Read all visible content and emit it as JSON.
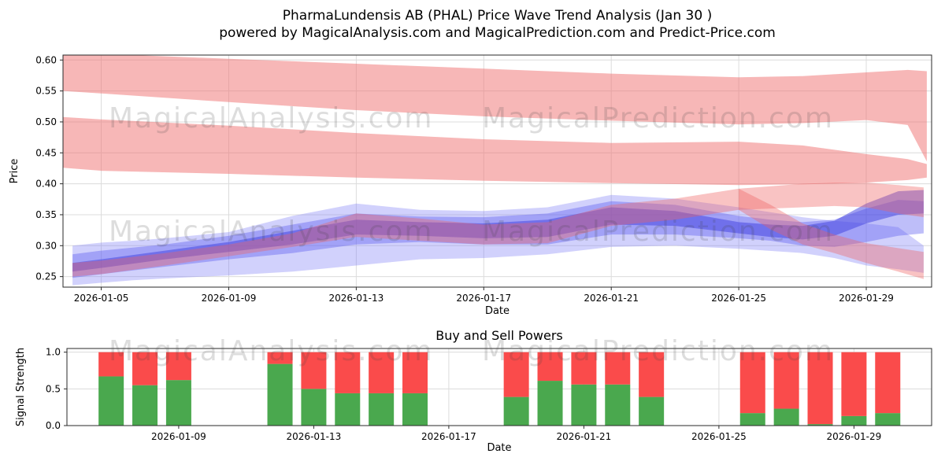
{
  "watermark": {
    "left_text": "MagicalAnalysis.com",
    "right_text": "MagicalPrediction.com"
  },
  "chart_data": [
    {
      "type": "area",
      "name": "price-wave-trend",
      "title": "PharmaLundensis AB (PHAL) Price Wave Trend Analysis (Jan 30 )",
      "subtitle": "powered by MagicalAnalysis.com and MagicalPrediction.com and Predict-Price.com",
      "xlabel": "Date",
      "ylabel": "Price",
      "ylim": [
        0.233,
        0.608
      ],
      "grid": true,
      "ytick_values": [
        0.25,
        0.3,
        0.35,
        0.4,
        0.45,
        0.5,
        0.55,
        0.6
      ],
      "yticks": [
        "0.25",
        "0.30",
        "0.35",
        "0.40",
        "0.45",
        "0.50",
        "0.55",
        "0.60"
      ],
      "xticks": [
        {
          "day": 5,
          "label": "2026-01-05"
        },
        {
          "day": 9,
          "label": "2026-01-09"
        },
        {
          "day": 13,
          "label": "2026-01-13"
        },
        {
          "day": 17,
          "label": "2026-01-17"
        },
        {
          "day": 21,
          "label": "2026-01-21"
        },
        {
          "day": 25,
          "label": "2026-01-25"
        },
        {
          "day": 29,
          "label": "2026-01-29"
        }
      ],
      "bands": [
        {
          "name": "upper-resistance",
          "color": "#f07070",
          "opacity": 0.5,
          "days": [
            3.8,
            5,
            9,
            13,
            17,
            21,
            25,
            27,
            29,
            30.3,
            30.9
          ],
          "upper": [
            0.612,
            0.61,
            0.602,
            0.594,
            0.586,
            0.578,
            0.572,
            0.574,
            0.58,
            0.584,
            0.582
          ],
          "lower": [
            0.55,
            0.546,
            0.532,
            0.519,
            0.509,
            0.502,
            0.496,
            0.498,
            0.503,
            0.495,
            0.436
          ]
        },
        {
          "name": "lower-resistance",
          "color": "#f07070",
          "opacity": 0.5,
          "days": [
            3.8,
            5,
            9,
            13,
            17,
            21,
            25,
            27,
            29,
            30.3,
            30.9
          ],
          "upper": [
            0.508,
            0.504,
            0.494,
            0.482,
            0.472,
            0.466,
            0.468,
            0.462,
            0.448,
            0.44,
            0.432
          ],
          "lower": [
            0.426,
            0.421,
            0.416,
            0.41,
            0.405,
            0.401,
            0.398,
            0.399,
            0.402,
            0.406,
            0.41
          ]
        },
        {
          "name": "support-outer",
          "color": "#7b7bf7",
          "opacity": 0.35,
          "days": [
            4.1,
            5,
            6,
            7,
            9,
            11,
            13,
            15,
            17,
            19,
            21,
            23,
            25,
            27,
            28,
            29,
            30,
            30.8
          ],
          "upper": [
            0.3,
            0.305,
            0.308,
            0.312,
            0.322,
            0.348,
            0.368,
            0.358,
            0.356,
            0.362,
            0.382,
            0.376,
            0.362,
            0.346,
            0.34,
            0.336,
            0.33,
            0.3
          ],
          "lower": [
            0.236,
            0.24,
            0.244,
            0.247,
            0.252,
            0.258,
            0.268,
            0.278,
            0.28,
            0.286,
            0.298,
            0.3,
            0.295,
            0.288,
            0.28,
            0.268,
            0.262,
            0.256
          ]
        },
        {
          "name": "support-mid",
          "color": "#5c5cf0",
          "opacity": 0.4,
          "days": [
            4.1,
            5,
            7,
            9,
            11,
            13,
            15,
            17,
            19,
            21,
            23,
            25,
            26,
            27,
            28,
            29,
            30,
            30.8
          ],
          "upper": [
            0.286,
            0.292,
            0.302,
            0.316,
            0.334,
            0.352,
            0.347,
            0.346,
            0.352,
            0.372,
            0.366,
            0.348,
            0.342,
            0.338,
            0.342,
            0.36,
            0.374,
            0.372
          ],
          "lower": [
            0.248,
            0.254,
            0.266,
            0.278,
            0.288,
            0.302,
            0.306,
            0.302,
            0.302,
            0.318,
            0.318,
            0.312,
            0.308,
            0.3,
            0.298,
            0.306,
            0.316,
            0.32
          ]
        },
        {
          "name": "support-core",
          "color": "#3d3de0",
          "opacity": 0.5,
          "days": [
            4.1,
            5,
            7,
            9,
            11,
            13,
            15,
            17,
            19,
            21,
            23,
            25,
            26,
            27,
            28,
            29,
            30,
            30.8
          ],
          "upper": [
            0.272,
            0.278,
            0.292,
            0.306,
            0.324,
            0.342,
            0.338,
            0.336,
            0.342,
            0.362,
            0.356,
            0.338,
            0.334,
            0.332,
            0.34,
            0.368,
            0.388,
            0.39
          ],
          "lower": [
            0.258,
            0.264,
            0.278,
            0.29,
            0.302,
            0.318,
            0.316,
            0.312,
            0.314,
            0.334,
            0.332,
            0.32,
            0.314,
            0.31,
            0.316,
            0.336,
            0.35,
            0.352
          ]
        },
        {
          "name": "momentum",
          "color": "#f06060",
          "opacity": 0.38,
          "days": [
            4.1,
            5,
            7,
            9,
            11,
            13,
            15,
            17,
            19,
            21,
            23,
            25,
            26,
            27,
            28,
            29,
            30,
            30.8
          ],
          "upper": [
            0.272,
            0.276,
            0.288,
            0.302,
            0.32,
            0.352,
            0.344,
            0.334,
            0.338,
            0.366,
            0.376,
            0.392,
            0.396,
            0.4,
            0.402,
            0.402,
            0.398,
            0.394
          ],
          "lower": [
            0.25,
            0.254,
            0.268,
            0.283,
            0.298,
            0.314,
            0.308,
            0.302,
            0.304,
            0.332,
            0.342,
            0.358,
            0.36,
            0.362,
            0.364,
            0.362,
            0.352,
            0.346
          ]
        },
        {
          "name": "momentum-tail",
          "color": "#f06060",
          "opacity": 0.38,
          "days": [
            25,
            26,
            27,
            28,
            29,
            30,
            30.8
          ],
          "upper": [
            0.392,
            0.366,
            0.336,
            0.318,
            0.304,
            0.296,
            0.29
          ],
          "lower": [
            0.358,
            0.326,
            0.302,
            0.288,
            0.272,
            0.258,
            0.246
          ]
        }
      ]
    },
    {
      "type": "bar",
      "name": "buy-sell-powers",
      "title": "Buy and Sell Powers",
      "xlabel": "Date",
      "ylabel": "Signal Strength",
      "ylim": [
        0,
        1.05
      ],
      "grid": true,
      "yticks": [
        {
          "v": 0.0,
          "label": "0.0"
        },
        {
          "v": 0.5,
          "label": "0.5"
        },
        {
          "v": 1.0,
          "label": "1.0"
        }
      ],
      "xticks": [
        {
          "day": 9,
          "label": "2026-01-09"
        },
        {
          "day": 13,
          "label": "2026-01-13"
        },
        {
          "day": 17,
          "label": "2026-01-17"
        },
        {
          "day": 21,
          "label": "2026-01-21"
        },
        {
          "day": 25,
          "label": "2026-01-25"
        },
        {
          "day": 29,
          "label": "2026-01-29"
        }
      ],
      "days": [
        7,
        8,
        9,
        12,
        13,
        14,
        15,
        16,
        19,
        20,
        21,
        22,
        23,
        26,
        27,
        28,
        29,
        30
      ],
      "buy": {
        "name": "Buy",
        "color": "#4aa84e",
        "values": [
          0.67,
          0.55,
          0.62,
          0.84,
          0.5,
          0.44,
          0.44,
          0.44,
          0.39,
          0.61,
          0.56,
          0.56,
          0.39,
          0.17,
          0.23,
          0.02,
          0.13,
          0.17
        ]
      },
      "sell": {
        "name": "Sell",
        "color": "#fa4b4b",
        "values": [
          0.33,
          0.45,
          0.38,
          0.16,
          0.5,
          0.56,
          0.56,
          0.56,
          0.61,
          0.39,
          0.44,
          0.44,
          0.61,
          0.83,
          0.77,
          0.98,
          0.87,
          0.83
        ]
      }
    }
  ]
}
